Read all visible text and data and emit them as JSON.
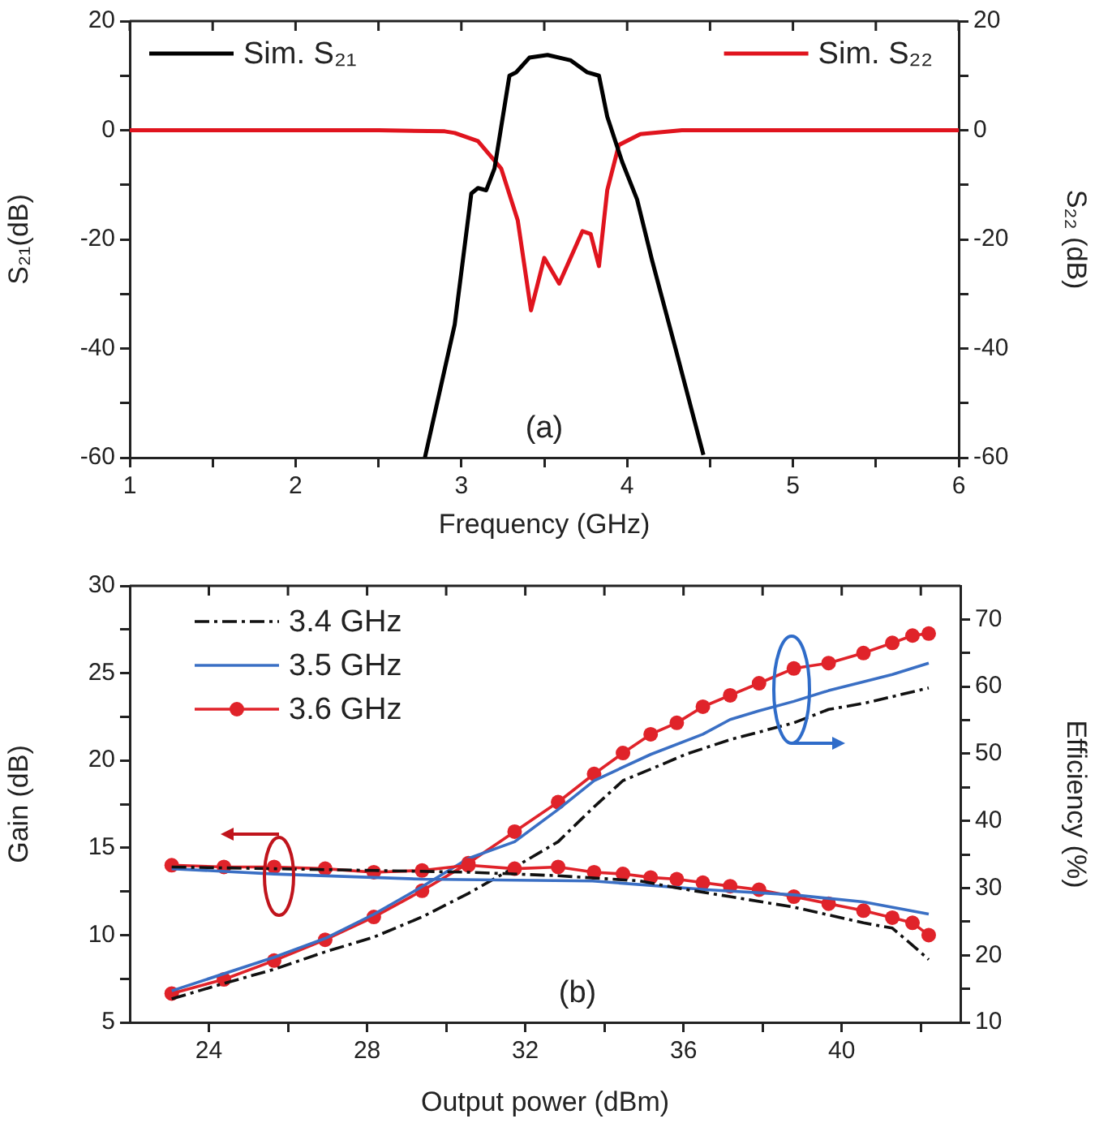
{
  "chart_data": [
    {
      "type": "line",
      "xlabel": "Frequency (GHz)",
      "ylabel": "S₂₁(dB)",
      "y2label": "S₂₂ (dB)",
      "annotations": [
        "(a)"
      ],
      "xlim": [
        1,
        6
      ],
      "xticks": [
        1,
        {
          "value": 1.5,
          "label": null
        },
        2,
        {
          "value": 2.5,
          "label": null
        },
        3,
        {
          "value": 3.5,
          "label": null
        },
        4,
        {
          "value": 4.5,
          "label": null
        },
        5,
        {
          "value": 5.5,
          "label": null
        },
        6
      ],
      "ylim": [
        -60,
        20
      ],
      "yticks": [
        -60,
        {
          "value": -50,
          "label": null
        },
        -40,
        {
          "value": -30,
          "label": null
        },
        -20,
        {
          "value": -10,
          "label": null
        },
        0,
        {
          "value": 10,
          "label": null
        },
        20
      ],
      "y2lim": [
        -60,
        20
      ],
      "y2ticks": [
        -60,
        {
          "value": -50,
          "label": null
        },
        -40,
        {
          "value": -30,
          "label": null
        },
        -20,
        {
          "value": -10,
          "label": null
        },
        0,
        {
          "value": 10,
          "label": null
        },
        20
      ],
      "grid": false,
      "legend": "top",
      "marker": "none",
      "line_style": "solid",
      "series": [
        {
          "name": "Sim. S₂₁",
          "color": "#000000",
          "x": [
            2.78,
            2.96,
            3.06,
            3.1,
            3.15,
            3.2,
            3.29,
            3.33,
            3.41,
            3.52,
            3.66,
            3.76,
            3.83,
            3.88,
            3.97,
            4.06,
            4.15,
            4.29,
            4.46
          ],
          "values": [
            -60,
            -35.6,
            -11.6,
            -10.6,
            -11,
            -7,
            10,
            10.6,
            13.3,
            13.8,
            12.8,
            10.6,
            10,
            2.5,
            -5.8,
            -12.7,
            -23.8,
            -39.8,
            -59.5
          ]
        },
        {
          "name": "Sim. S₂₂",
          "color": "#e0141e",
          "axis": "y2",
          "x": [
            1,
            2.5,
            2.9,
            2.96,
            3.1,
            3.24,
            3.34,
            3.42,
            3.5,
            3.59,
            3.73,
            3.78,
            3.83,
            3.88,
            3.95,
            4.08,
            4.33,
            6
          ],
          "values": [
            0,
            0,
            -0.2,
            -0.5,
            -2,
            -7,
            -16.5,
            -33,
            -23.4,
            -28.1,
            -18.5,
            -19,
            -24.9,
            -11,
            -2.7,
            -0.7,
            0,
            0
          ]
        }
      ]
    },
    {
      "type": "line",
      "xlabel": "Output power (dBm)",
      "ylabel": "Gain (dB)",
      "y2label": "Efficiency (%)",
      "annotations": [
        "(b)"
      ],
      "xlim": [
        22,
        43
      ],
      "xticks": [
        24,
        {
          "value": 26,
          "label": null
        },
        28,
        {
          "value": 30,
          "label": null
        },
        32,
        {
          "value": 34,
          "label": null
        },
        36,
        {
          "value": 38,
          "label": null
        },
        40,
        {
          "value": 42,
          "label": null
        }
      ],
      "ylim": [
        5,
        30
      ],
      "yticks": [
        5,
        {
          "value": 7.5,
          "label": null
        },
        10,
        {
          "value": 12.5,
          "label": null
        },
        15,
        {
          "value": 17.5,
          "label": null
        },
        20,
        {
          "value": 22.5,
          "label": null
        },
        25,
        {
          "value": 27.5,
          "label": null
        },
        30
      ],
      "y2lim": [
        10,
        75
      ],
      "y2ticks": [
        10,
        {
          "value": 15,
          "label": null
        },
        20,
        {
          "value": 25,
          "label": null
        },
        30,
        {
          "value": 35,
          "label": null
        },
        40,
        {
          "value": 45,
          "label": null
        },
        50,
        {
          "value": 55,
          "label": null
        },
        60,
        {
          "value": 65,
          "label": null
        },
        70
      ],
      "grid": false,
      "legend": "top left",
      "series": [
        {
          "name": "3.4 GHz",
          "color": "#111111",
          "line_style": "dashed",
          "marker": "none",
          "x": [
            23.06,
            25.65,
            28.17,
            30.56,
            32.83,
            34.9,
            35.83,
            37.18,
            38.79,
            40.55,
            41.28,
            41.8,
            42.2
          ],
          "values": [
            13.9,
            13.8,
            13.7,
            13.6,
            13.4,
            13.1,
            12.7,
            12.2,
            11.6,
            10.7,
            10.4,
            9.4,
            8.6
          ]
        },
        {
          "name": "3.5 GHz",
          "color": "#3a6fc4",
          "line_style": "solid",
          "marker": "none",
          "x": [
            23.06,
            25.65,
            29.39,
            33.7,
            36.6,
            38.8,
            40.55,
            42.2
          ],
          "values": [
            13.8,
            13.5,
            13.2,
            13.1,
            12.6,
            12.3,
            11.9,
            11.2
          ]
        },
        {
          "name": "3.6 GHz",
          "color": "#e0232a",
          "line_style": "solid",
          "marker": "circle",
          "x": [
            23.06,
            24.38,
            25.65,
            26.94,
            28.17,
            29.39,
            30.56,
            31.73,
            32.83,
            33.74,
            34.47,
            35.17,
            35.83,
            36.49,
            37.18,
            37.91,
            38.79,
            39.67,
            40.55,
            41.28,
            41.79,
            42.2
          ],
          "values": [
            14,
            13.9,
            13.9,
            13.8,
            13.6,
            13.7,
            14,
            13.8,
            13.9,
            13.6,
            13.5,
            13.3,
            13.2,
            13,
            12.8,
            12.6,
            12.2,
            11.8,
            11.4,
            11,
            10.7,
            10
          ]
        },
        {
          "color": "#111111",
          "axis": "y2",
          "line_style": "dashed",
          "marker": "none",
          "x": [
            23.06,
            24.38,
            25.65,
            26.94,
            28.17,
            29.39,
            30.56,
            31.73,
            32.83,
            33.74,
            34.47,
            35.17,
            36.05,
            37.18,
            38.79,
            39.67,
            40.55,
            41.28,
            42.2
          ],
          "values": [
            13.5,
            15.8,
            17.9,
            20.5,
            22.7,
            25.7,
            29.2,
            33.1,
            36.9,
            42.1,
            46,
            47.7,
            49.9,
            52.1,
            54.6,
            56.6,
            57.5,
            58.5,
            59.8
          ]
        },
        {
          "color": "#3a6fc4",
          "axis": "y2",
          "line_style": "solid",
          "marker": "none",
          "x": [
            23.06,
            25.65,
            26.94,
            28.17,
            29.39,
            30.56,
            31.73,
            32.83,
            33.74,
            35.17,
            36.49,
            37.18,
            37.91,
            38.79,
            39.67,
            40.55,
            41.28,
            42.2
          ],
          "values": [
            14.7,
            19.7,
            22.5,
            26.1,
            30.2,
            34.4,
            36.9,
            41.7,
            46,
            49.9,
            52.9,
            55.1,
            56.4,
            57.8,
            59.4,
            60.7,
            61.8,
            63.5
          ]
        },
        {
          "color": "#e0232a",
          "axis": "y2",
          "line_style": "solid",
          "marker": "circle",
          "x": [
            23.06,
            24.38,
            25.65,
            26.94,
            28.17,
            29.39,
            30.56,
            31.73,
            32.83,
            33.74,
            34.47,
            35.17,
            35.83,
            36.49,
            37.18,
            37.91,
            38.79,
            39.67,
            40.55,
            41.28,
            41.79,
            42.2
          ],
          "values": [
            14.3,
            16.4,
            19.2,
            22.3,
            25.7,
            29.6,
            33.7,
            38.4,
            42.8,
            47,
            50.1,
            52.9,
            54.6,
            57,
            58.7,
            60.5,
            62.7,
            63.5,
            65,
            66.5,
            67.6,
            67.9
          ]
        }
      ]
    }
  ]
}
